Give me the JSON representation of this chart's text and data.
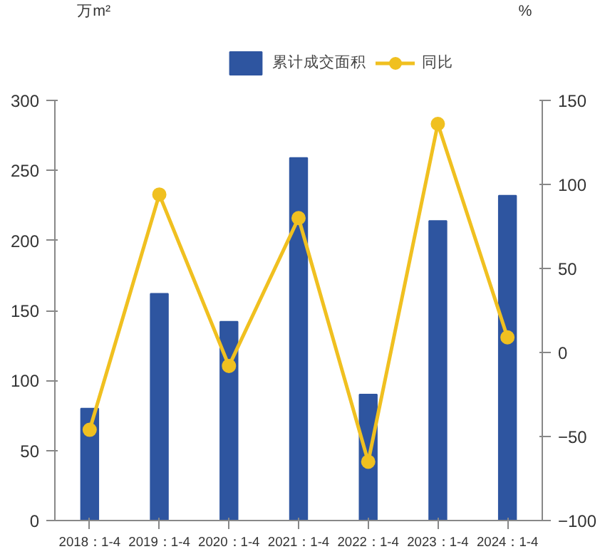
{
  "chart_data": {
    "type": "bar",
    "ylabel": "万m²",
    "y2label": "%",
    "categories": [
      "2018：1-4",
      "2019：1-4",
      "2020：1-4",
      "2021：1-4",
      "2022：1-4",
      "2023：1-4",
      "2024：1-4"
    ],
    "series": [
      {
        "name": "累计成交面积",
        "color": "#2e55a0",
        "values": [
          80,
          162,
          142,
          259,
          90,
          214,
          232
        ]
      },
      {
        "name": "同比",
        "type": "line",
        "axis": "y2",
        "color": "#f0c020",
        "marker": "circle",
        "values": [
          -46,
          94,
          -8,
          80,
          -65,
          136,
          9
        ]
      }
    ],
    "ylim": [
      0,
      300
    ],
    "yticks": [
      0,
      50,
      100,
      150,
      200,
      250,
      300
    ],
    "y2lim": [
      -100,
      150
    ],
    "y2ticks": [
      -100,
      -50,
      0,
      50,
      100,
      150
    ],
    "grid": false,
    "legend": "top"
  }
}
